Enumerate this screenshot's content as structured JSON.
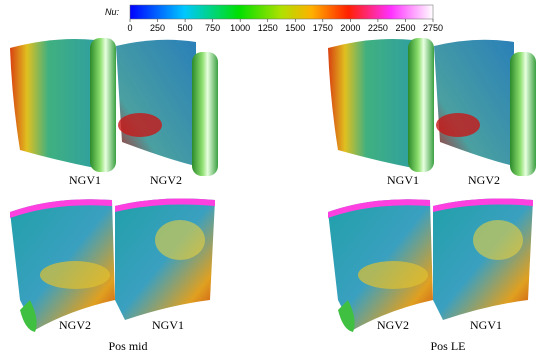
{
  "colorbar": {
    "label": "Nu:",
    "ticks": [
      0,
      250,
      500,
      750,
      1000,
      1250,
      1500,
      1750,
      2000,
      2250,
      2500,
      2750
    ]
  },
  "panels": [
    {
      "top_labels": [
        "NGV1",
        "NGV2"
      ],
      "bottom_labels": [
        "NGV2",
        "NGV1"
      ],
      "caption": "Pos mid"
    },
    {
      "top_labels": [
        "NGV1",
        "NGV2"
      ],
      "bottom_labels": [
        "NGV2",
        "NGV1"
      ],
      "caption": "Pos LE"
    }
  ]
}
